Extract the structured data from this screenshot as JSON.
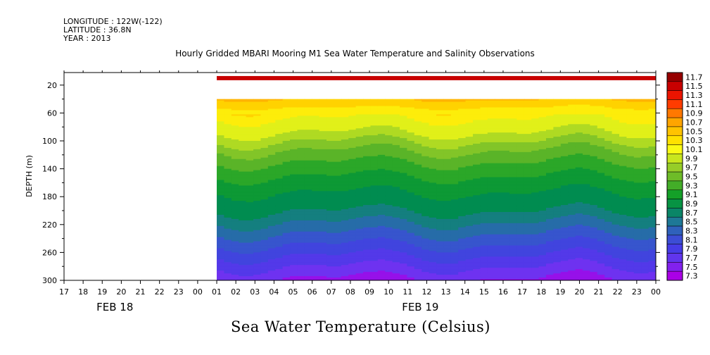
{
  "header": {
    "longitude": "LONGITUDE : 122W(-122)",
    "latitude": "LATITUDE : 36.8N",
    "year": "YEAR : 2013"
  },
  "chart_data": {
    "type": "heatmap",
    "title": "Hourly Gridded MBARI Mooring M1 Sea Water Temperature and Salinity Observations",
    "subtitle": "Sea Water Temperature (Celsius)",
    "ylabel": "DEPTH (m)",
    "xlabel": "",
    "ylim": [
      300,
      2
    ],
    "y_ticks": [
      20,
      60,
      100,
      140,
      180,
      220,
      260,
      300
    ],
    "x_tick_labels": [
      "17",
      "18",
      "19",
      "20",
      "21",
      "22",
      "23",
      "00",
      "01",
      "02",
      "03",
      "04",
      "05",
      "06",
      "07",
      "08",
      "09",
      "10",
      "11",
      "12",
      "13",
      "14",
      "15",
      "16",
      "17",
      "18",
      "19",
      "20",
      "21",
      "22",
      "23",
      "00"
    ],
    "x_date_labels": [
      {
        "label": "FEB 18",
        "at_tick": 2
      },
      {
        "label": "FEB 19",
        "at_tick": 18
      }
    ],
    "data_start_tick": 8,
    "colorbar": {
      "levels": [
        7.3,
        7.5,
        7.7,
        7.9,
        8.1,
        8.3,
        8.5,
        8.7,
        8.9,
        9.1,
        9.3,
        9.5,
        9.7,
        9.9,
        10.1,
        10.3,
        10.5,
        10.7,
        10.9,
        11.1,
        11.3,
        11.5,
        11.7
      ],
      "labels": [
        "11.7",
        "11.5",
        "11.3",
        "11.1",
        "10.9",
        "10.7",
        "10.5",
        "10.3",
        "10.1",
        "9.9",
        "9.7",
        "9.5",
        "9.3",
        "9.1",
        "8.9",
        "8.7",
        "8.5",
        "8.3",
        "8.1",
        "7.9",
        "7.7",
        "7.5",
        "7.3"
      ]
    },
    "depth_profile": [
      {
        "depth": 10,
        "temp": 11.6
      },
      {
        "depth": 20,
        "temp": null
      },
      {
        "depth": 40,
        "temp": 10.5
      },
      {
        "depth": 60,
        "temp": 10.15
      },
      {
        "depth": 80,
        "temp": 10.0
      },
      {
        "depth": 100,
        "temp": 9.7
      },
      {
        "depth": 120,
        "temp": 9.4
      },
      {
        "depth": 140,
        "temp": 9.2
      },
      {
        "depth": 160,
        "temp": 9.0
      },
      {
        "depth": 180,
        "temp": 8.85
      },
      {
        "depth": 200,
        "temp": 8.7
      },
      {
        "depth": 220,
        "temp": 8.45
      },
      {
        "depth": 240,
        "temp": 8.2
      },
      {
        "depth": 260,
        "temp": 7.95
      },
      {
        "depth": 280,
        "temp": 7.7
      },
      {
        "depth": 300,
        "temp": 7.45
      }
    ]
  }
}
